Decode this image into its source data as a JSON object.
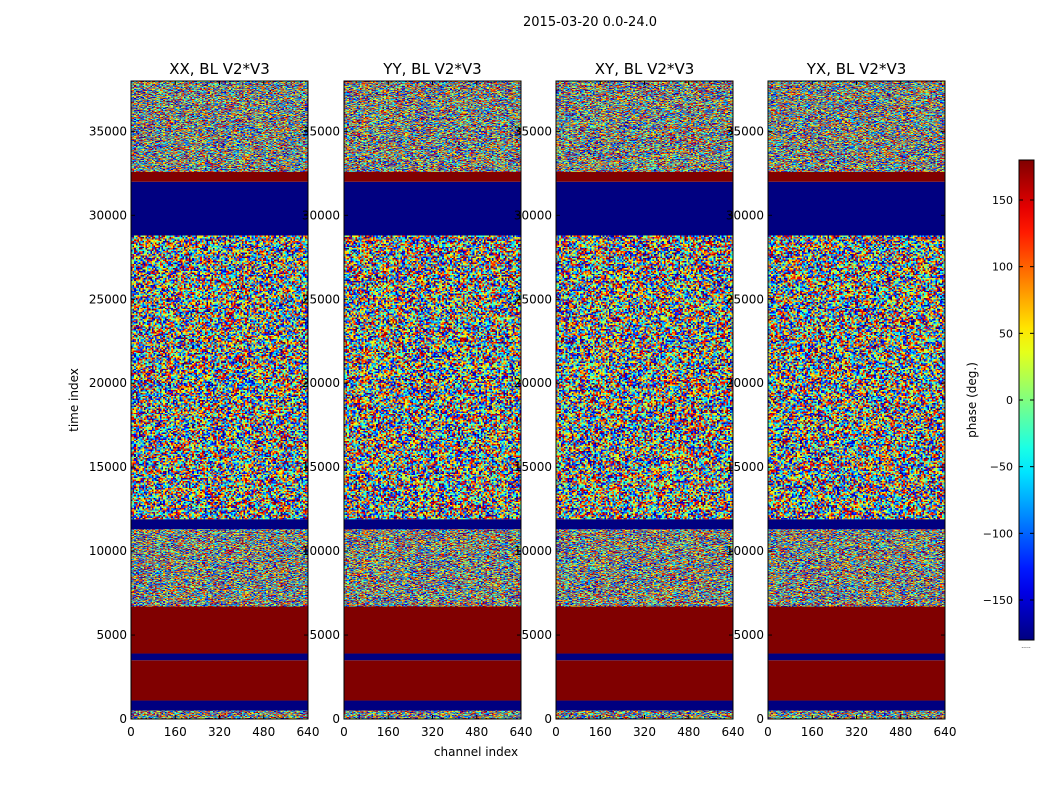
{
  "figure": {
    "suptitle": "2015-03-20 0.0-24.0",
    "xlabel": "channel index",
    "ylabel": "time index"
  },
  "chart_data": {
    "type": "heatmap",
    "xlim": [
      0,
      640
    ],
    "ylim": [
      0,
      38000
    ],
    "xticks": [
      0,
      160,
      320,
      480,
      640
    ],
    "yticks": [
      0,
      5000,
      10000,
      15000,
      20000,
      25000,
      30000,
      35000
    ],
    "value_range": [
      -180,
      180
    ],
    "colormap": "jet",
    "panels": [
      {
        "title": "XX, BL V2*V3"
      },
      {
        "title": "YY, BL V2*V3"
      },
      {
        "title": "XY, BL V2*V3"
      },
      {
        "title": "YX, BL V2*V3"
      }
    ],
    "bands": [
      {
        "y0": 0,
        "y1": 500,
        "kind": "noise"
      },
      {
        "y0": 500,
        "y1": 1100,
        "value": -180
      },
      {
        "y0": 1100,
        "y1": 3500,
        "value": 180
      },
      {
        "y0": 3500,
        "y1": 3900,
        "value": -180
      },
      {
        "y0": 3900,
        "y1": 6700,
        "value": 180
      },
      {
        "y0": 6700,
        "y1": 11300,
        "kind": "noise"
      },
      {
        "y0": 11300,
        "y1": 11900,
        "value": -180
      },
      {
        "y0": 11900,
        "y1": 28800,
        "kind": "noise"
      },
      {
        "y0": 28800,
        "y1": 32000,
        "value": -180
      },
      {
        "y0": 32000,
        "y1": 32600,
        "value": 180
      },
      {
        "y0": 32600,
        "y1": 38000,
        "kind": "noise"
      }
    ],
    "colorbar": {
      "label": "phase (deg.)",
      "ticks": [
        -150,
        -100,
        -50,
        0,
        50,
        100,
        150
      ]
    }
  },
  "colors": {
    "low": "#00007f",
    "high": "#7f0000"
  }
}
